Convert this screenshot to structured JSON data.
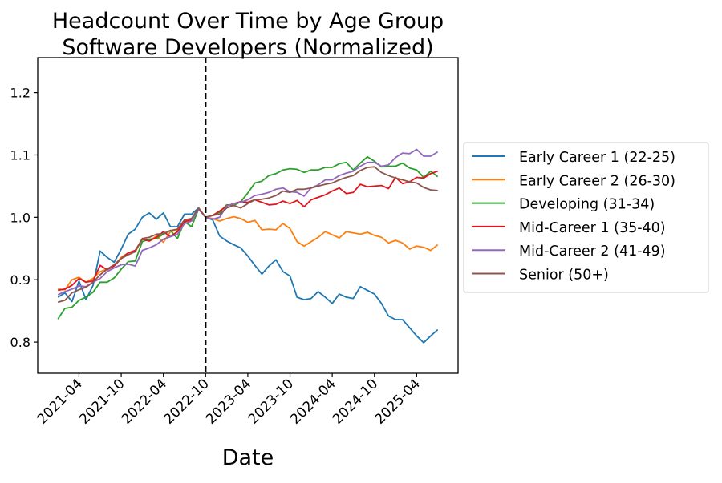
{
  "chart_data": {
    "type": "line",
    "title": "Headcount Over Time by Age Group",
    "subtitle": "Software Developers (Normalized)",
    "xlabel": "Date",
    "ylabel": "",
    "ylim": [
      0.75,
      1.256
    ],
    "xlim": [
      "2020-10-05",
      "2025-09-28"
    ],
    "grid": false,
    "legend_placement": "outside-right",
    "yticks": [
      0.8,
      0.9,
      1.0,
      1.1,
      1.2
    ],
    "ytick_labels": [
      "0.8",
      "0.9",
      "1.0",
      "1.1",
      "1.2"
    ],
    "xticks": [
      "2021-04",
      "2021-10",
      "2022-04",
      "2022-10",
      "2023-04",
      "2023-10",
      "2024-04",
      "2024-10",
      "2025-04"
    ],
    "reference_line": {
      "x": "2022-10",
      "style": "dashed",
      "color": "#000000"
    },
    "x": [
      "2021-01",
      "2021-02",
      "2021-03",
      "2021-04",
      "2021-05",
      "2021-06",
      "2021-07",
      "2021-08",
      "2021-09",
      "2021-10",
      "2021-11",
      "2021-12",
      "2022-01",
      "2022-02",
      "2022-03",
      "2022-04",
      "2022-05",
      "2022-06",
      "2022-07",
      "2022-08",
      "2022-09",
      "2022-10",
      "2022-11",
      "2022-12",
      "2023-01",
      "2023-02",
      "2023-03",
      "2023-04",
      "2023-05",
      "2023-06",
      "2023-07",
      "2023-08",
      "2023-09",
      "2023-10",
      "2023-11",
      "2023-12",
      "2024-01",
      "2024-02",
      "2024-03",
      "2024-04",
      "2024-05",
      "2024-06",
      "2024-07",
      "2024-08",
      "2024-09",
      "2024-10",
      "2024-11",
      "2024-12",
      "2025-01",
      "2025-02",
      "2025-03",
      "2025-04",
      "2025-05",
      "2025-06",
      "2025-07"
    ],
    "series": [
      {
        "name": "Early Career 1 (22-25)",
        "color": "#1f77b4",
        "values": [
          0.872,
          0.879,
          0.865,
          0.898,
          0.868,
          0.891,
          0.946,
          0.936,
          0.928,
          0.949,
          0.973,
          0.981,
          1.0,
          1.007,
          0.997,
          1.007,
          0.985,
          0.985,
          1.005,
          1.005,
          1.015,
          1.0,
          0.996,
          0.97,
          0.962,
          0.956,
          0.951,
          0.938,
          0.923,
          0.909,
          0.922,
          0.932,
          0.913,
          0.906,
          0.872,
          0.868,
          0.87,
          0.881,
          0.872,
          0.862,
          0.877,
          0.872,
          0.87,
          0.889,
          0.883,
          0.877,
          0.862,
          0.842,
          0.836,
          0.836,
          0.823,
          0.81,
          0.799,
          0.81,
          0.82
        ]
      },
      {
        "name": "Early Career 2 (26-30)",
        "color": "#ff7f0e",
        "values": [
          0.885,
          0.884,
          0.9,
          0.904,
          0.896,
          0.902,
          0.913,
          0.917,
          0.923,
          0.936,
          0.943,
          0.945,
          0.965,
          0.962,
          0.97,
          0.96,
          0.977,
          0.98,
          0.996,
          0.994,
          1.015,
          1.0,
          0.998,
          0.994,
          0.998,
          1.001,
          0.998,
          0.992,
          0.995,
          0.98,
          0.981,
          0.98,
          0.99,
          0.982,
          0.961,
          0.954,
          0.961,
          0.968,
          0.977,
          0.972,
          0.967,
          0.977,
          0.975,
          0.973,
          0.976,
          0.971,
          0.968,
          0.959,
          0.963,
          0.959,
          0.949,
          0.954,
          0.952,
          0.947,
          0.956
        ]
      },
      {
        "name": "Developing (31-34)",
        "color": "#2ca02c",
        "values": [
          0.837,
          0.854,
          0.856,
          0.867,
          0.872,
          0.88,
          0.896,
          0.896,
          0.903,
          0.917,
          0.929,
          0.93,
          0.961,
          0.965,
          0.966,
          0.973,
          0.979,
          0.966,
          0.993,
          0.985,
          1.013,
          1.0,
          1.003,
          1.008,
          1.02,
          1.019,
          1.025,
          1.039,
          1.055,
          1.058,
          1.067,
          1.07,
          1.076,
          1.078,
          1.077,
          1.072,
          1.076,
          1.076,
          1.08,
          1.08,
          1.086,
          1.088,
          1.076,
          1.087,
          1.097,
          1.09,
          1.081,
          1.082,
          1.082,
          1.087,
          1.079,
          1.076,
          1.064,
          1.074,
          1.065
        ]
      },
      {
        "name": "Mid-Career 1 (35-40)",
        "color": "#e0141e",
        "values": [
          0.883,
          0.885,
          0.891,
          0.902,
          0.896,
          0.898,
          0.923,
          0.916,
          0.922,
          0.934,
          0.943,
          0.947,
          0.965,
          0.962,
          0.968,
          0.977,
          0.969,
          0.977,
          0.993,
          0.996,
          1.013,
          1.0,
          1.003,
          1.01,
          1.018,
          1.022,
          1.025,
          1.024,
          1.028,
          1.024,
          1.02,
          1.021,
          1.026,
          1.022,
          1.027,
          1.017,
          1.028,
          1.032,
          1.036,
          1.042,
          1.047,
          1.038,
          1.04,
          1.053,
          1.049,
          1.05,
          1.051,
          1.046,
          1.064,
          1.054,
          1.057,
          1.064,
          1.063,
          1.07,
          1.074
        ]
      },
      {
        "name": "Mid-Career 2 (41-49)",
        "color": "#9467bd",
        "values": [
          0.876,
          0.881,
          0.885,
          0.89,
          0.889,
          0.896,
          0.902,
          0.913,
          0.919,
          0.924,
          0.925,
          0.922,
          0.947,
          0.951,
          0.956,
          0.965,
          0.969,
          0.973,
          0.99,
          0.994,
          1.013,
          1.0,
          0.997,
          1.0,
          1.018,
          1.022,
          1.024,
          1.028,
          1.035,
          1.037,
          1.04,
          1.045,
          1.047,
          1.041,
          1.04,
          1.034,
          1.047,
          1.052,
          1.06,
          1.06,
          1.067,
          1.071,
          1.074,
          1.082,
          1.088,
          1.088,
          1.082,
          1.084,
          1.096,
          1.103,
          1.102,
          1.109,
          1.098,
          1.098,
          1.105
        ]
      },
      {
        "name": "Senior (50+)",
        "color": "#8c564b",
        "values": [
          0.864,
          0.867,
          0.879,
          0.884,
          0.888,
          0.896,
          0.908,
          0.917,
          0.924,
          0.934,
          0.94,
          0.945,
          0.966,
          0.968,
          0.973,
          0.974,
          0.979,
          0.981,
          0.996,
          0.998,
          1.015,
          1.0,
          1.003,
          1.005,
          1.015,
          1.019,
          1.015,
          1.022,
          1.028,
          1.029,
          1.031,
          1.035,
          1.042,
          1.04,
          1.045,
          1.045,
          1.047,
          1.05,
          1.053,
          1.055,
          1.06,
          1.064,
          1.067,
          1.075,
          1.08,
          1.081,
          1.072,
          1.067,
          1.063,
          1.06,
          1.057,
          1.055,
          1.048,
          1.044,
          1.043
        ]
      }
    ]
  }
}
